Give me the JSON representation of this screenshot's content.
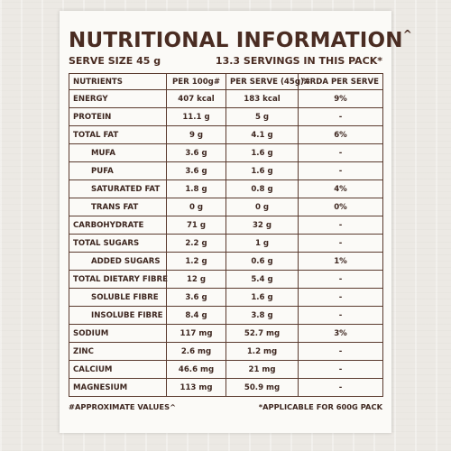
{
  "panel": {
    "title": "NUTRITIONAL INFORMATION",
    "title_mark": "^",
    "serve_size": "SERVE SIZE 45 g",
    "servings": "13.3 SERVINGS IN THIS PACK*"
  },
  "table": {
    "headers": [
      "NUTRIENTS",
      "PER 100g#",
      "PER SERVE (45g)#",
      "%RDA PER SERVE"
    ],
    "rows": [
      [
        "ENERGY",
        "407 kcal",
        "183 kcal",
        "9%"
      ],
      [
        "PROTEIN",
        "11.1 g",
        "5 g",
        "-"
      ],
      [
        "TOTAL FAT",
        "9 g",
        "4.1 g",
        "6%"
      ],
      [
        "MUFA",
        "3.6 g",
        "1.6 g",
        "-"
      ],
      [
        "PUFA",
        "3.6 g",
        "1.6 g",
        "-"
      ],
      [
        "SATURATED FAT",
        "1.8 g",
        "0.8 g",
        "4%"
      ],
      [
        "TRANS FAT",
        "0 g",
        "0 g",
        "0%"
      ],
      [
        "CARBOHYDRATE",
        "71 g",
        "32 g",
        "-"
      ],
      [
        "TOTAL SUGARS",
        "2.2 g",
        "1 g",
        "-"
      ],
      [
        "ADDED SUGARS",
        "1.2 g",
        "0.6 g",
        "1%"
      ],
      [
        "TOTAL DIETARY FIBRE",
        "12 g",
        "5.4 g",
        "-"
      ],
      [
        "SOLUBLE FIBRE",
        "3.6 g",
        "1.6 g",
        "-"
      ],
      [
        "INSOLUBE FIBRE",
        "8.4 g",
        "3.8 g",
        "-"
      ],
      [
        "SODIUM",
        "117 mg",
        "52.7 mg",
        "3%"
      ],
      [
        "ZINC",
        "2.6 mg",
        "1.2 mg",
        "-"
      ],
      [
        "CALCIUM",
        "46.6 mg",
        "21 mg",
        "-"
      ],
      [
        "MAGNESIUM",
        "113 mg",
        "50.9 mg",
        "-"
      ]
    ],
    "sub_rows": [
      3,
      4,
      5,
      6,
      9,
      11,
      12
    ]
  },
  "footer": {
    "left": "#APPROXIMATE VALUES^",
    "right": "*APPLICABLE FOR 600G PACK"
  }
}
